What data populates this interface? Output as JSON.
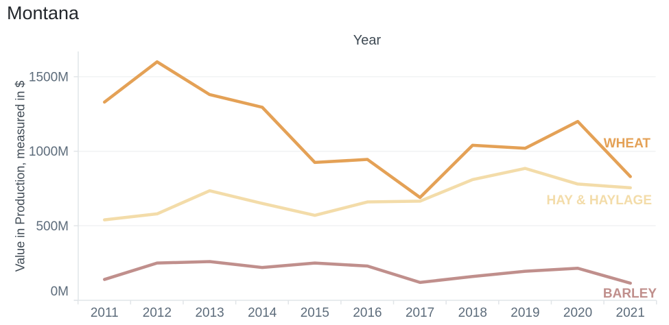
{
  "title": "Montana",
  "chart_data": {
    "type": "line",
    "title": "Montana",
    "xlabel": "Year",
    "ylabel": "Value in Production, measured in $",
    "x": [
      "2011",
      "2012",
      "2013",
      "2014",
      "2015",
      "2016",
      "2017",
      "2018",
      "2019",
      "2020",
      "2021"
    ],
    "series": [
      {
        "name": "WHEAT",
        "color": "#E4A156",
        "values": [
          1330,
          1600,
          1380,
          1295,
          925,
          945,
          690,
          1040,
          1020,
          1200,
          830
        ]
      },
      {
        "name": "HAY & HAYLAGE",
        "color": "#F3DCA9",
        "values": [
          540,
          580,
          735,
          650,
          570,
          660,
          665,
          810,
          885,
          780,
          755
        ]
      },
      {
        "name": "BARLEY",
        "color": "#C08F8C",
        "values": [
          140,
          250,
          260,
          220,
          250,
          230,
          120,
          160,
          195,
          215,
          115
        ]
      }
    ],
    "y_ticks": [
      {
        "label": "0M",
        "value": 0
      },
      {
        "label": "500M",
        "value": 500
      },
      {
        "label": "1000M",
        "value": 1000
      },
      {
        "label": "1500M",
        "value": 1500
      }
    ],
    "ylim": [
      0,
      1670
    ],
    "unit": "M",
    "grid": true,
    "legend_position": "inline-right-of-lines"
  },
  "colors": {
    "title": "#23272c",
    "axis_title": "#3f4a54",
    "tick_label": "#5d6c7b",
    "gridline": "#f0f2f3",
    "axis_line": "#e1e5e8",
    "background": "#ffffff"
  }
}
